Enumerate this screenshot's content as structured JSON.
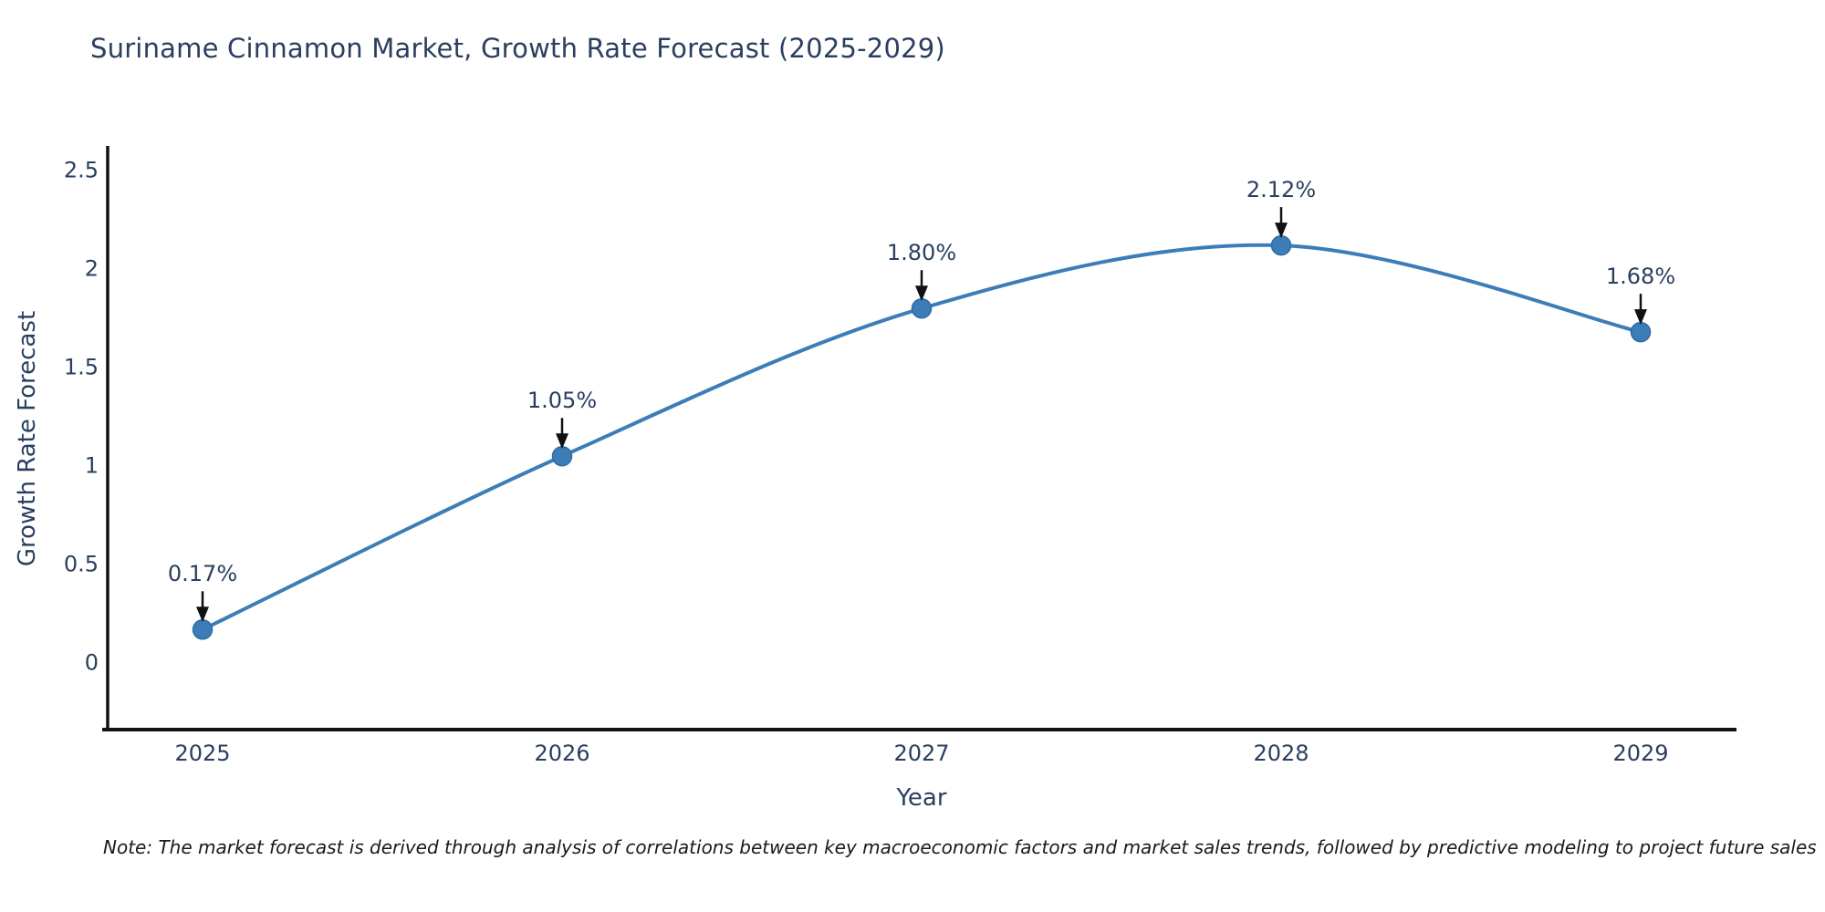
{
  "title": "Suriname Cinnamon Market, Growth Rate Forecast (2025-2029)",
  "note": "Note: The market forecast is derived through analysis of correlations between key macroeconomic factors and market sales trends, followed by predictive modeling to project future sales",
  "chart_data": {
    "type": "line",
    "curve": "spline",
    "title": "Suriname Cinnamon Market, Growth Rate Forecast (2025-2029)",
    "xlabel": "Year",
    "ylabel": "Growth Rate Forecast",
    "categories": [
      "2025",
      "2026",
      "2027",
      "2028",
      "2029"
    ],
    "values": [
      0.17,
      1.05,
      1.8,
      2.12,
      1.68
    ],
    "point_labels": [
      "0.17%",
      "1.05%",
      "1.80%",
      "2.12%",
      "1.68%"
    ],
    "xtick_labels": [
      "2025",
      "2026",
      "2027",
      "2028",
      "2029"
    ],
    "ytick_labels": [
      "0",
      "0.5",
      "1",
      "1.5",
      "2",
      "2.5"
    ],
    "yticks": [
      0,
      0.5,
      1,
      1.5,
      2,
      2.5
    ],
    "ylim": [
      -0.35,
      2.65
    ],
    "grid": false,
    "legend_position": "none",
    "line_color": "#3d7db7",
    "marker_color": "#3d7db7",
    "marker_edge_color": "#2e6ba3",
    "annotation_arrow_color": "#111111",
    "axis_color": "#111111",
    "text_color": "#2a3f5f",
    "note_color": "#191919",
    "background_color": "#ffffff"
  }
}
